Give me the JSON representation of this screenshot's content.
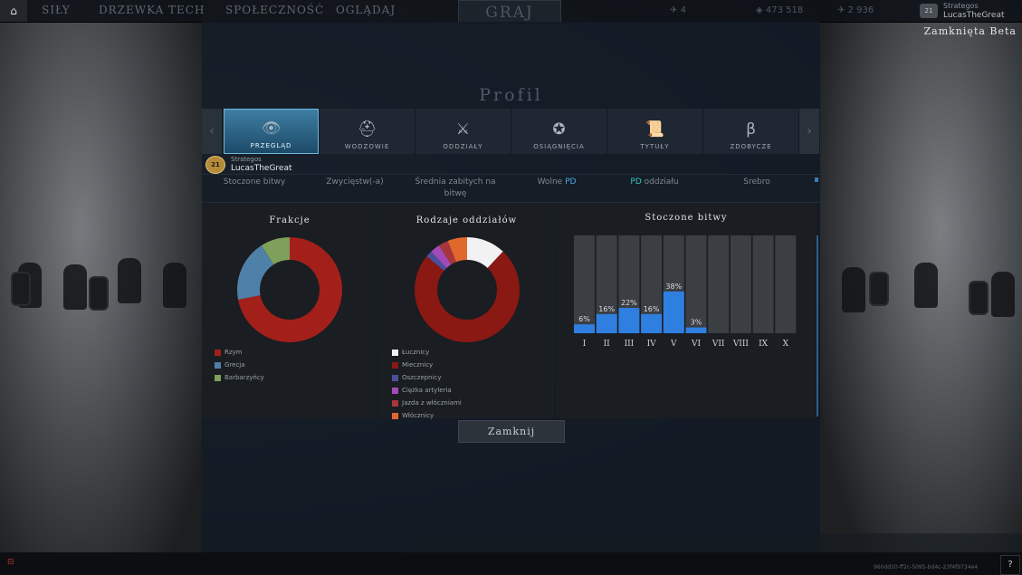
{
  "topbar": {
    "nav": [
      "SIŁY",
      "DRZEWKA TECH",
      "SPOŁECZNOŚĆ",
      "OGLĄDAJ"
    ],
    "play_label": "GRAJ",
    "resources": [
      "4",
      "473 518",
      "2 936"
    ],
    "user_title": "Strategos",
    "user_name": "LucasTheGreat",
    "user_rank": "21",
    "beta_label": "Zamknięta Beta"
  },
  "modal": {
    "title": "Profil",
    "tabs": [
      {
        "label": "PRZEGLĄD",
        "icon": "eye-emblem-icon",
        "active": true
      },
      {
        "label": "WODZOWIE",
        "icon": "helmet-icon",
        "active": false
      },
      {
        "label": "ODDZIAŁY",
        "icon": "army-icon",
        "active": false
      },
      {
        "label": "OSIĄGNIĘCIA",
        "icon": "star-emblem-icon",
        "active": false
      },
      {
        "label": "TYTUŁY",
        "icon": "scroll-icon",
        "active": false
      },
      {
        "label": "ZDOBYCZE",
        "icon": "beta-emblem-icon",
        "active": false
      }
    ],
    "player": {
      "rank": "21",
      "title": "Strategos",
      "name": "LucasTheGreat"
    },
    "stats_headers": {
      "battles": "Stoczone bitwy",
      "wins": "Zwycięstw(-a)",
      "avg_kills_1": "Średnia zabitych na",
      "avg_kills_2": "bitwę",
      "free_1": "Wolne",
      "free_2": "PD",
      "unit_1": "PD",
      "unit_2": "oddziału",
      "silver": "Srebro"
    },
    "close_label": "Zamknij"
  },
  "factions": {
    "title": "Frakcje",
    "items": [
      {
        "label": "Rzym",
        "value": 0.72,
        "color": "#a3201a"
      },
      {
        "label": "Grecja",
        "value": 0.19,
        "color": "#4f80a7"
      },
      {
        "label": "Barbarzyńcy",
        "value": 0.09,
        "color": "#7fa05a"
      }
    ]
  },
  "unit_types": {
    "title": "Rodzaje oddziałów",
    "items": [
      {
        "label": "Łucznicy",
        "value": 0.12,
        "color": "#f2f2f2"
      },
      {
        "label": "Miecznicy",
        "value": 0.74,
        "color": "#8a1813"
      },
      {
        "label": "Oszczepnicy",
        "value": 0.02,
        "color": "#4b4f9a"
      },
      {
        "label": "Ciężka artyleria",
        "value": 0.03,
        "color": "#a24bb8"
      },
      {
        "label": "Jazda z włóczniami",
        "value": 0.03,
        "color": "#a8343c"
      },
      {
        "label": "Włócznicy",
        "value": 0.06,
        "color": "#e0682d"
      }
    ]
  },
  "chart_data": {
    "type": "bar",
    "title": "Stoczone bitwy",
    "categories": [
      "I",
      "II",
      "III",
      "IV",
      "V",
      "VI",
      "VII",
      "VIII",
      "IX",
      "X"
    ],
    "values": [
      6,
      16,
      22,
      16,
      38,
      3,
      0,
      0,
      0,
      0
    ],
    "labels": [
      "6%",
      "16%",
      "22%",
      "16%",
      "38%",
      "3%",
      "",
      "",
      "",
      ""
    ],
    "ylim": [
      0,
      100
    ],
    "bar_color": "#2f7fe0",
    "track_color": "#3b3f44"
  },
  "footer": {
    "id_text": "960dd10-ff2c-5095-bd4c-23f4f9734e4"
  }
}
